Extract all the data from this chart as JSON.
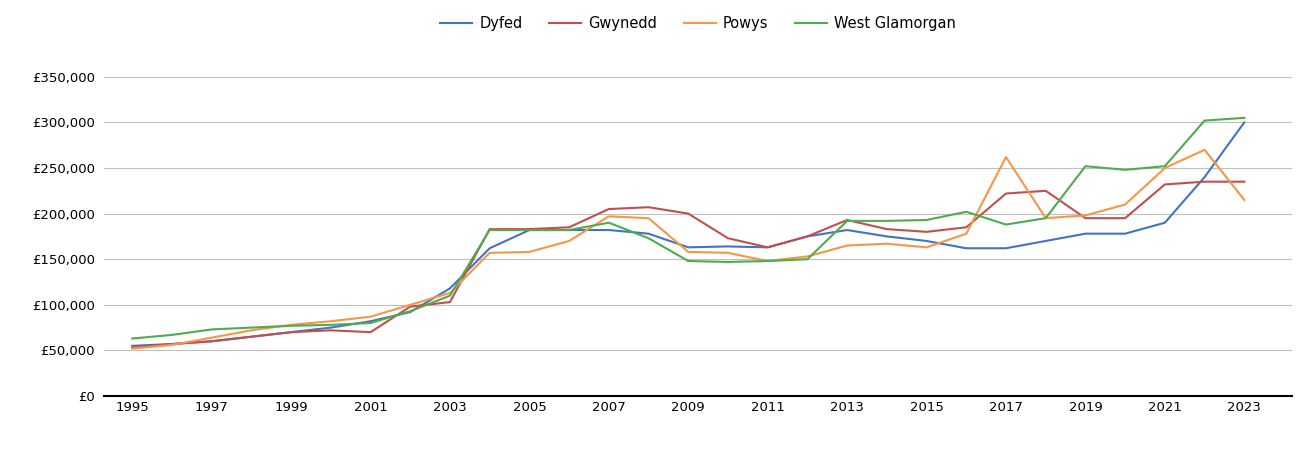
{
  "years": [
    1995,
    1996,
    1997,
    1998,
    1999,
    2000,
    2001,
    2002,
    2003,
    2004,
    2005,
    2006,
    2007,
    2008,
    2009,
    2010,
    2011,
    2012,
    2013,
    2014,
    2015,
    2016,
    2017,
    2018,
    2019,
    2020,
    2021,
    2022,
    2023
  ],
  "dyfed": [
    55000,
    57000,
    60000,
    65000,
    70000,
    75000,
    82000,
    92000,
    118000,
    162000,
    182000,
    182000,
    182000,
    178000,
    163000,
    164000,
    163000,
    175000,
    182000,
    175000,
    170000,
    162000,
    162000,
    170000,
    178000,
    178000,
    190000,
    240000,
    300000
  ],
  "gwynedd": [
    53000,
    57000,
    60000,
    65000,
    70000,
    72000,
    70000,
    98000,
    103000,
    183000,
    183000,
    185000,
    205000,
    207000,
    200000,
    173000,
    163000,
    175000,
    193000,
    183000,
    180000,
    185000,
    222000,
    225000,
    195000,
    195000,
    232000,
    235000,
    235000
  ],
  "powys": [
    52000,
    56000,
    64000,
    72000,
    78000,
    82000,
    87000,
    100000,
    113000,
    157000,
    158000,
    170000,
    197000,
    195000,
    158000,
    157000,
    148000,
    153000,
    165000,
    167000,
    163000,
    178000,
    262000,
    195000,
    198000,
    210000,
    250000,
    270000,
    215000
  ],
  "west_glamorgan": [
    63000,
    67000,
    73000,
    75000,
    77000,
    78000,
    80000,
    93000,
    110000,
    182000,
    182000,
    182000,
    190000,
    173000,
    148000,
    147000,
    148000,
    150000,
    192000,
    192000,
    193000,
    202000,
    188000,
    195000,
    252000,
    248000,
    252000,
    302000,
    305000
  ],
  "colors": {
    "dyfed": "#4472C4",
    "gwynedd": "#C0504D",
    "powys": "#F79646",
    "west_glamorgan": "#4EAC4E"
  },
  "ylim": [
    0,
    375000
  ],
  "yticks": [
    0,
    50000,
    100000,
    150000,
    200000,
    250000,
    300000,
    350000
  ],
  "xticks": [
    1995,
    1997,
    1999,
    2001,
    2003,
    2005,
    2007,
    2009,
    2011,
    2013,
    2015,
    2017,
    2019,
    2021,
    2023
  ],
  "xlim": [
    1994.3,
    2024.2
  ],
  "background_color": "#ffffff",
  "grid_color": "#c0c0c0"
}
